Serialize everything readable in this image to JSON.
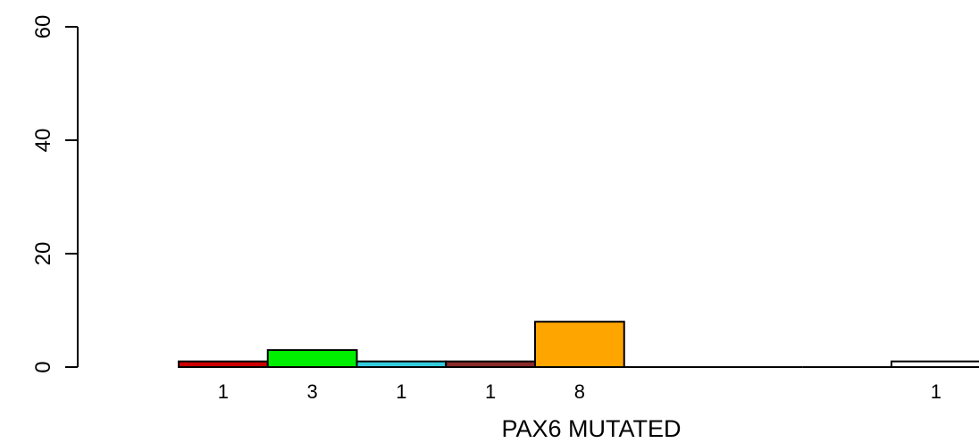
{
  "chart_data": {
    "type": "bar",
    "title": "",
    "xlabel": "PAX6 MUTATED",
    "ylabel": "",
    "ylim": [
      0,
      60
    ],
    "yticks": [
      0,
      20,
      40,
      60
    ],
    "bar_width": 1,
    "grid": false,
    "legend": "none",
    "bars": [
      {
        "x": 0,
        "value": 1,
        "label": "1",
        "color": "#cc0000"
      },
      {
        "x": 1,
        "value": 3,
        "label": "3",
        "color": "#00ee00"
      },
      {
        "x": 2,
        "value": 1,
        "label": "1",
        "color": "#33ccdd"
      },
      {
        "x": 3,
        "value": 1,
        "label": "1",
        "color": "#8b2a2a"
      },
      {
        "x": 4,
        "value": 8,
        "label": "8",
        "color": "#ffa500"
      },
      {
        "x": 5,
        "value": 0,
        "label": "",
        "color": "#ffffff"
      },
      {
        "x": 6,
        "value": 0,
        "label": "",
        "color": "#ffffff"
      },
      {
        "x": 7,
        "value": 0,
        "label": "",
        "color": "#ffffff"
      },
      {
        "x": 8,
        "value": 1,
        "label": "1",
        "color": "#ffffff"
      }
    ]
  }
}
